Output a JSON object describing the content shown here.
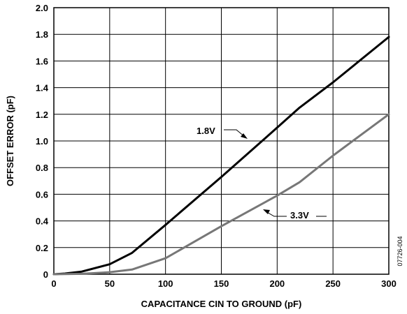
{
  "chart_data": {
    "type": "line",
    "title": "",
    "xlabel": "CAPACITANCE CIN TO GROUND (pF)",
    "ylabel": "OFFSET ERROR (pF)",
    "xlim": [
      0,
      300
    ],
    "ylim": [
      0,
      2.0
    ],
    "x_ticks": [
      "0",
      "50",
      "100",
      "150",
      "200",
      "250",
      "300"
    ],
    "y_ticks": [
      "0",
      "0.2",
      "0.4",
      "0.6",
      "0.8",
      "1.0",
      "1.2",
      "1.4",
      "1.6",
      "1.8",
      "2.0"
    ],
    "grid": true,
    "figure_id": "07726-004",
    "series": [
      {
        "name": "1.8V",
        "color": "#000000",
        "x": [
          0,
          10,
          25,
          50,
          70,
          100,
          150,
          200,
          220,
          250,
          300
        ],
        "y": [
          0,
          0.005,
          0.02,
          0.075,
          0.16,
          0.37,
          0.73,
          1.1,
          1.25,
          1.44,
          1.78
        ]
      },
      {
        "name": "3.3V",
        "color": "#777777",
        "x": [
          0,
          25,
          50,
          70,
          100,
          150,
          200,
          220,
          250,
          300
        ],
        "y": [
          0,
          0.003,
          0.015,
          0.035,
          0.12,
          0.36,
          0.59,
          0.69,
          0.89,
          1.2
        ]
      }
    ]
  }
}
